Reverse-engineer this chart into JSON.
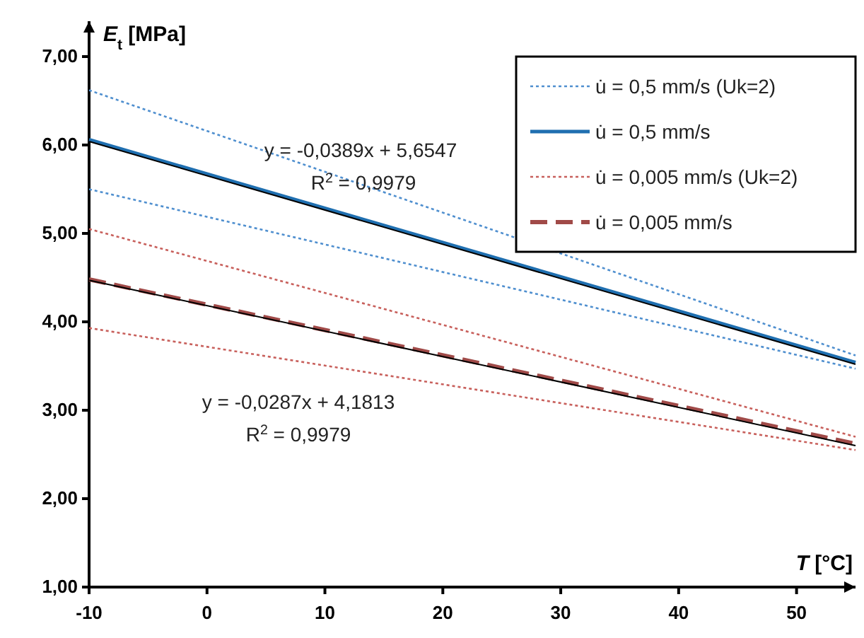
{
  "chart_data": {
    "type": "line",
    "ylabel": "E$_{t}$ [MPa]",
    "xlabel": "T [°C]",
    "xlim": [
      -10,
      55
    ],
    "ylim": [
      1,
      7.4
    ],
    "xticks": [
      -10,
      0,
      10,
      20,
      30,
      40,
      50
    ],
    "yticks": [
      {
        "value": 1,
        "label": "1,00"
      },
      {
        "value": 2,
        "label": "2,00"
      },
      {
        "value": 3,
        "label": "3,00"
      },
      {
        "value": 4,
        "label": "4,00"
      },
      {
        "value": 5,
        "label": "5,00"
      },
      {
        "value": 6,
        "label": "6,00"
      },
      {
        "value": 7,
        "label": "7,00"
      }
    ],
    "grid": false,
    "legend": "top right",
    "marker": "none",
    "x": [
      -10,
      55
    ],
    "series": [
      {
        "name": "u̇ = 0,5 mm/s (Uk=2)",
        "color": "#4f8fcf",
        "line_style": "dotted",
        "values": [
          6.62,
          3.62
        ]
      },
      {
        "color": "#4f8fcf",
        "line_style": "dotted",
        "values": [
          5.5,
          3.47
        ]
      },
      {
        "name": "u̇ = 0,5 mm/s",
        "color": "#1f6fb0",
        "line_style": "solid",
        "values": [
          6.06,
          3.54
        ]
      },
      {
        "name": "u̇ = 0,005 mm/s (Uk=2)",
        "color": "#c8605c",
        "line_style": "dotted",
        "values": [
          5.05,
          2.7
        ]
      },
      {
        "color": "#c8605c",
        "line_style": "dotted",
        "values": [
          3.93,
          2.55
        ]
      },
      {
        "name": "u̇ = 0,005 mm/s",
        "color": "#a04a48",
        "line_style": "dashed",
        "values": [
          4.48,
          2.62
        ]
      },
      {
        "color": "#000000",
        "line_style": "solid",
        "values": [
          6.04,
          3.52
        ]
      },
      {
        "color": "#000000",
        "line_style": "solid",
        "values": [
          4.47,
          2.6
        ]
      }
    ],
    "annotations": [
      "y = -0,0389x + 5,6547",
      "R$^{2}$ = 0,9979",
      "y = -0,0287x + 4,1813",
      "R$^{2}$ = 0,9979"
    ]
  }
}
